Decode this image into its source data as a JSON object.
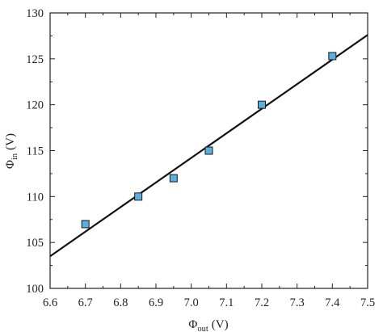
{
  "chart_data": {
    "type": "scatter",
    "xlabel_symbol": "Φ",
    "xlabel_subscript": "out",
    "xlabel_unit": "(V)",
    "ylabel_symbol": "Φ",
    "ylabel_subscript": "in",
    "ylabel_unit": "(V)",
    "xlim": [
      6.6,
      7.5
    ],
    "ylim": [
      100,
      130
    ],
    "xticks": [
      "6.6",
      "6.7",
      "6.8",
      "6.9",
      "7.0",
      "7.1",
      "7.2",
      "7.3",
      "7.4",
      "7.5"
    ],
    "yticks": [
      "100",
      "105",
      "110",
      "115",
      "120",
      "125",
      "130"
    ],
    "grid": false,
    "series": [
      {
        "kind": "points",
        "marker": "square",
        "color": "#5aaee0",
        "x": [
          6.7,
          6.85,
          6.95,
          7.05,
          7.2,
          7.4
        ],
        "y": [
          107,
          110,
          112,
          115,
          120,
          125.3
        ]
      },
      {
        "kind": "fit-line",
        "color": "#111111",
        "x": [
          6.6,
          7.5
        ],
        "y": [
          103.5,
          127.6
        ]
      }
    ]
  }
}
